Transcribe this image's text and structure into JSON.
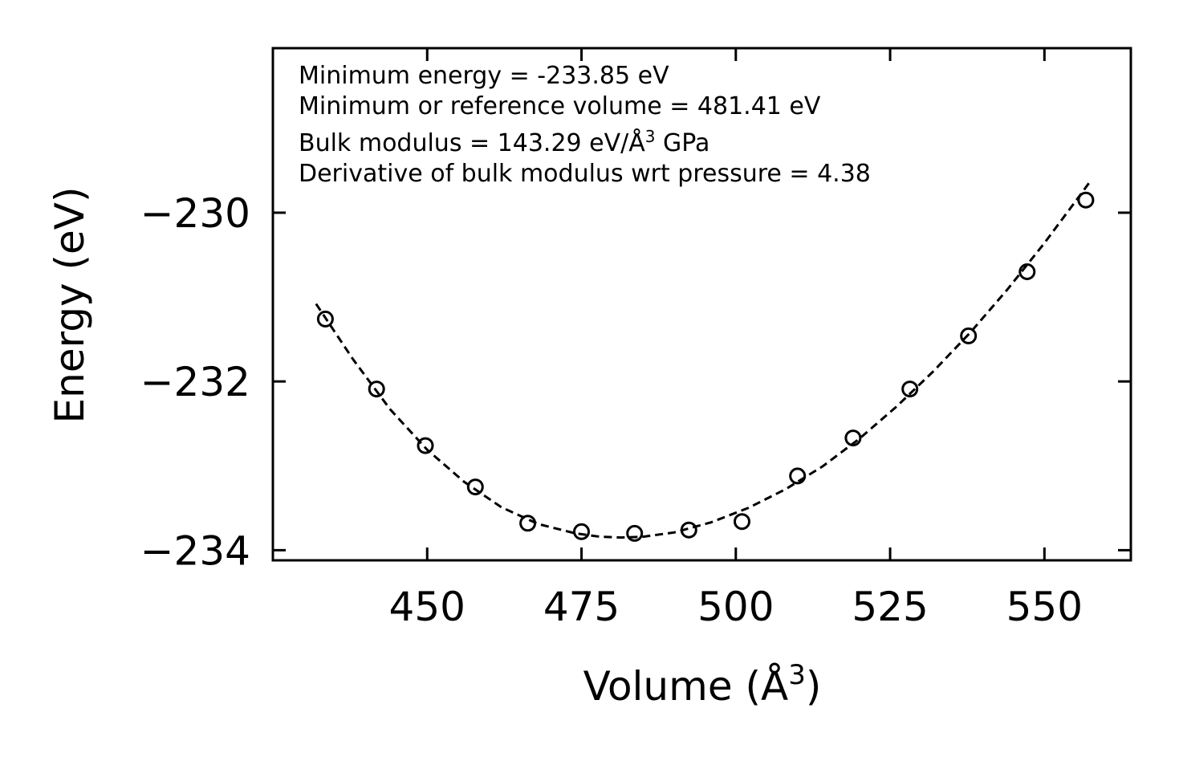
{
  "chart_data": {
    "type": "scatter",
    "title": "",
    "xlabel": "Volume (Å",
    "xlabel_sup": "3",
    "xlabel_end": ")",
    "ylabel": "Energy (eV)",
    "xlim": [
      425,
      564
    ],
    "ylim": [
      -234.12,
      -228.05
    ],
    "xticks": [
      450,
      475,
      500,
      525,
      550
    ],
    "xtick_labels": [
      "450",
      "475",
      "500",
      "525",
      "550"
    ],
    "yticks": [
      -234,
      -232,
      -230
    ],
    "ytick_labels": [
      "−234",
      "−232",
      "−230"
    ],
    "grid": false,
    "series": [
      {
        "name": "data",
        "style": "open-circle",
        "x": [
          433.5,
          441.8,
          449.7,
          457.8,
          466.3,
          475.0,
          483.6,
          492.4,
          501.0,
          510.0,
          519.0,
          528.2,
          537.7,
          547.2,
          556.7
        ],
        "y": [
          -231.26,
          -232.09,
          -232.76,
          -233.25,
          -233.68,
          -233.78,
          -233.8,
          -233.76,
          -233.66,
          -233.12,
          -232.67,
          -232.09,
          -231.46,
          -230.7,
          -229.85
        ]
      },
      {
        "name": "fit",
        "style": "dashed-line",
        "x": [
          432.0,
          438.0,
          444.0,
          450.0,
          456.0,
          462.0,
          468.0,
          474.0,
          478.0,
          481.4,
          485.0,
          490.0,
          496.0,
          502.0,
          508.0,
          514.0,
          520.0,
          526.0,
          532.0,
          538.0,
          544.0,
          550.0,
          556.0,
          557.5
        ],
        "y": [
          -231.08,
          -231.74,
          -232.33,
          -232.81,
          -233.19,
          -233.49,
          -233.69,
          -233.8,
          -233.84,
          -233.85,
          -233.84,
          -233.79,
          -233.67,
          -233.5,
          -233.28,
          -233.01,
          -232.68,
          -232.3,
          -231.88,
          -231.42,
          -230.91,
          -230.36,
          -229.77,
          -229.62
        ]
      }
    ],
    "annotations": [
      {
        "prefix": "Minimum energy = -233.85 eV"
      },
      {
        "prefix": "Minimum or reference volume = 481.41 eV"
      },
      {
        "prefix": "Bulk modulus = 143.29 eV/Å",
        "sup": "3",
        "suffix": " GPa"
      },
      {
        "prefix": "Derivative of bulk modulus wrt pressure = 4.38"
      }
    ]
  }
}
